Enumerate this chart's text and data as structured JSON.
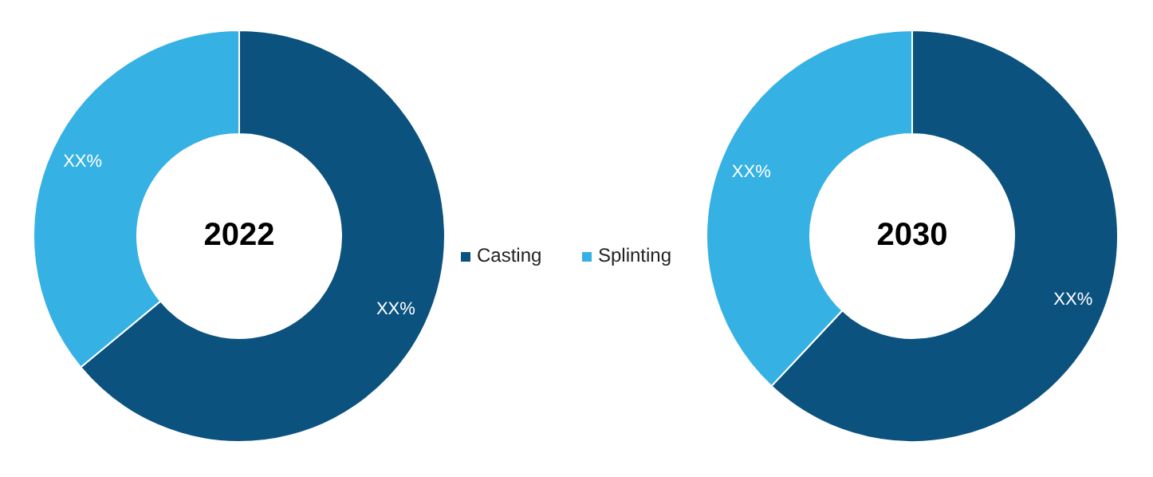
{
  "chart_data": [
    {
      "type": "donut",
      "title": "2022",
      "categories": [
        "Casting",
        "Splinting"
      ],
      "values": [
        64,
        36
      ],
      "colors": [
        "#0b527f",
        "#35b1e4"
      ],
      "value_labels": [
        "XX%",
        "XX%"
      ],
      "legend": "right"
    },
    {
      "type": "donut",
      "title": "2030",
      "categories": [
        null,
        null
      ],
      "values": [
        62,
        38
      ],
      "colors": [
        "#0b527f",
        "#35b1e4"
      ],
      "value_labels": [
        "XX%",
        "XX%"
      ]
    }
  ]
}
